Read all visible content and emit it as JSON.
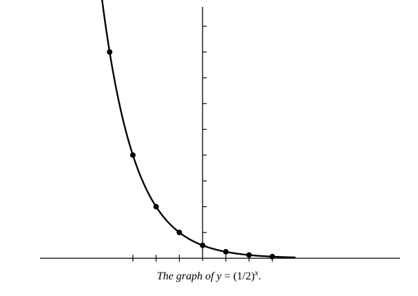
{
  "chart_data": {
    "type": "line",
    "title": "The graph of y = (1/2)^x.",
    "caption": {
      "prefix": "The graph of ",
      "lhs": "y",
      "eq": " = ",
      "base": "(1/2)",
      "exponent": "x",
      "suffix": "."
    },
    "function": "(1/2)^x",
    "points": [
      {
        "x": -4,
        "y": 16
      },
      {
        "x": -3,
        "y": 8
      },
      {
        "x": -2,
        "y": 4
      },
      {
        "x": -1,
        "y": 2
      },
      {
        "x": 0,
        "y": 1
      },
      {
        "x": 1,
        "y": 0.5
      },
      {
        "x": 2,
        "y": 0.25
      },
      {
        "x": 3,
        "y": 0.125
      }
    ],
    "curve_domain": [
      -4.35,
      4
    ],
    "xlim": [
      -7,
      8.5
    ],
    "ylim": [
      -0.2,
      19.5
    ],
    "x_ticks": [
      -3,
      -2,
      -1,
      1,
      2,
      3
    ],
    "y_ticks": [
      2,
      4,
      6,
      8,
      10,
      12,
      14,
      16,
      18
    ],
    "grid": false,
    "line_color": "#000000",
    "marker_color": "#000000"
  }
}
